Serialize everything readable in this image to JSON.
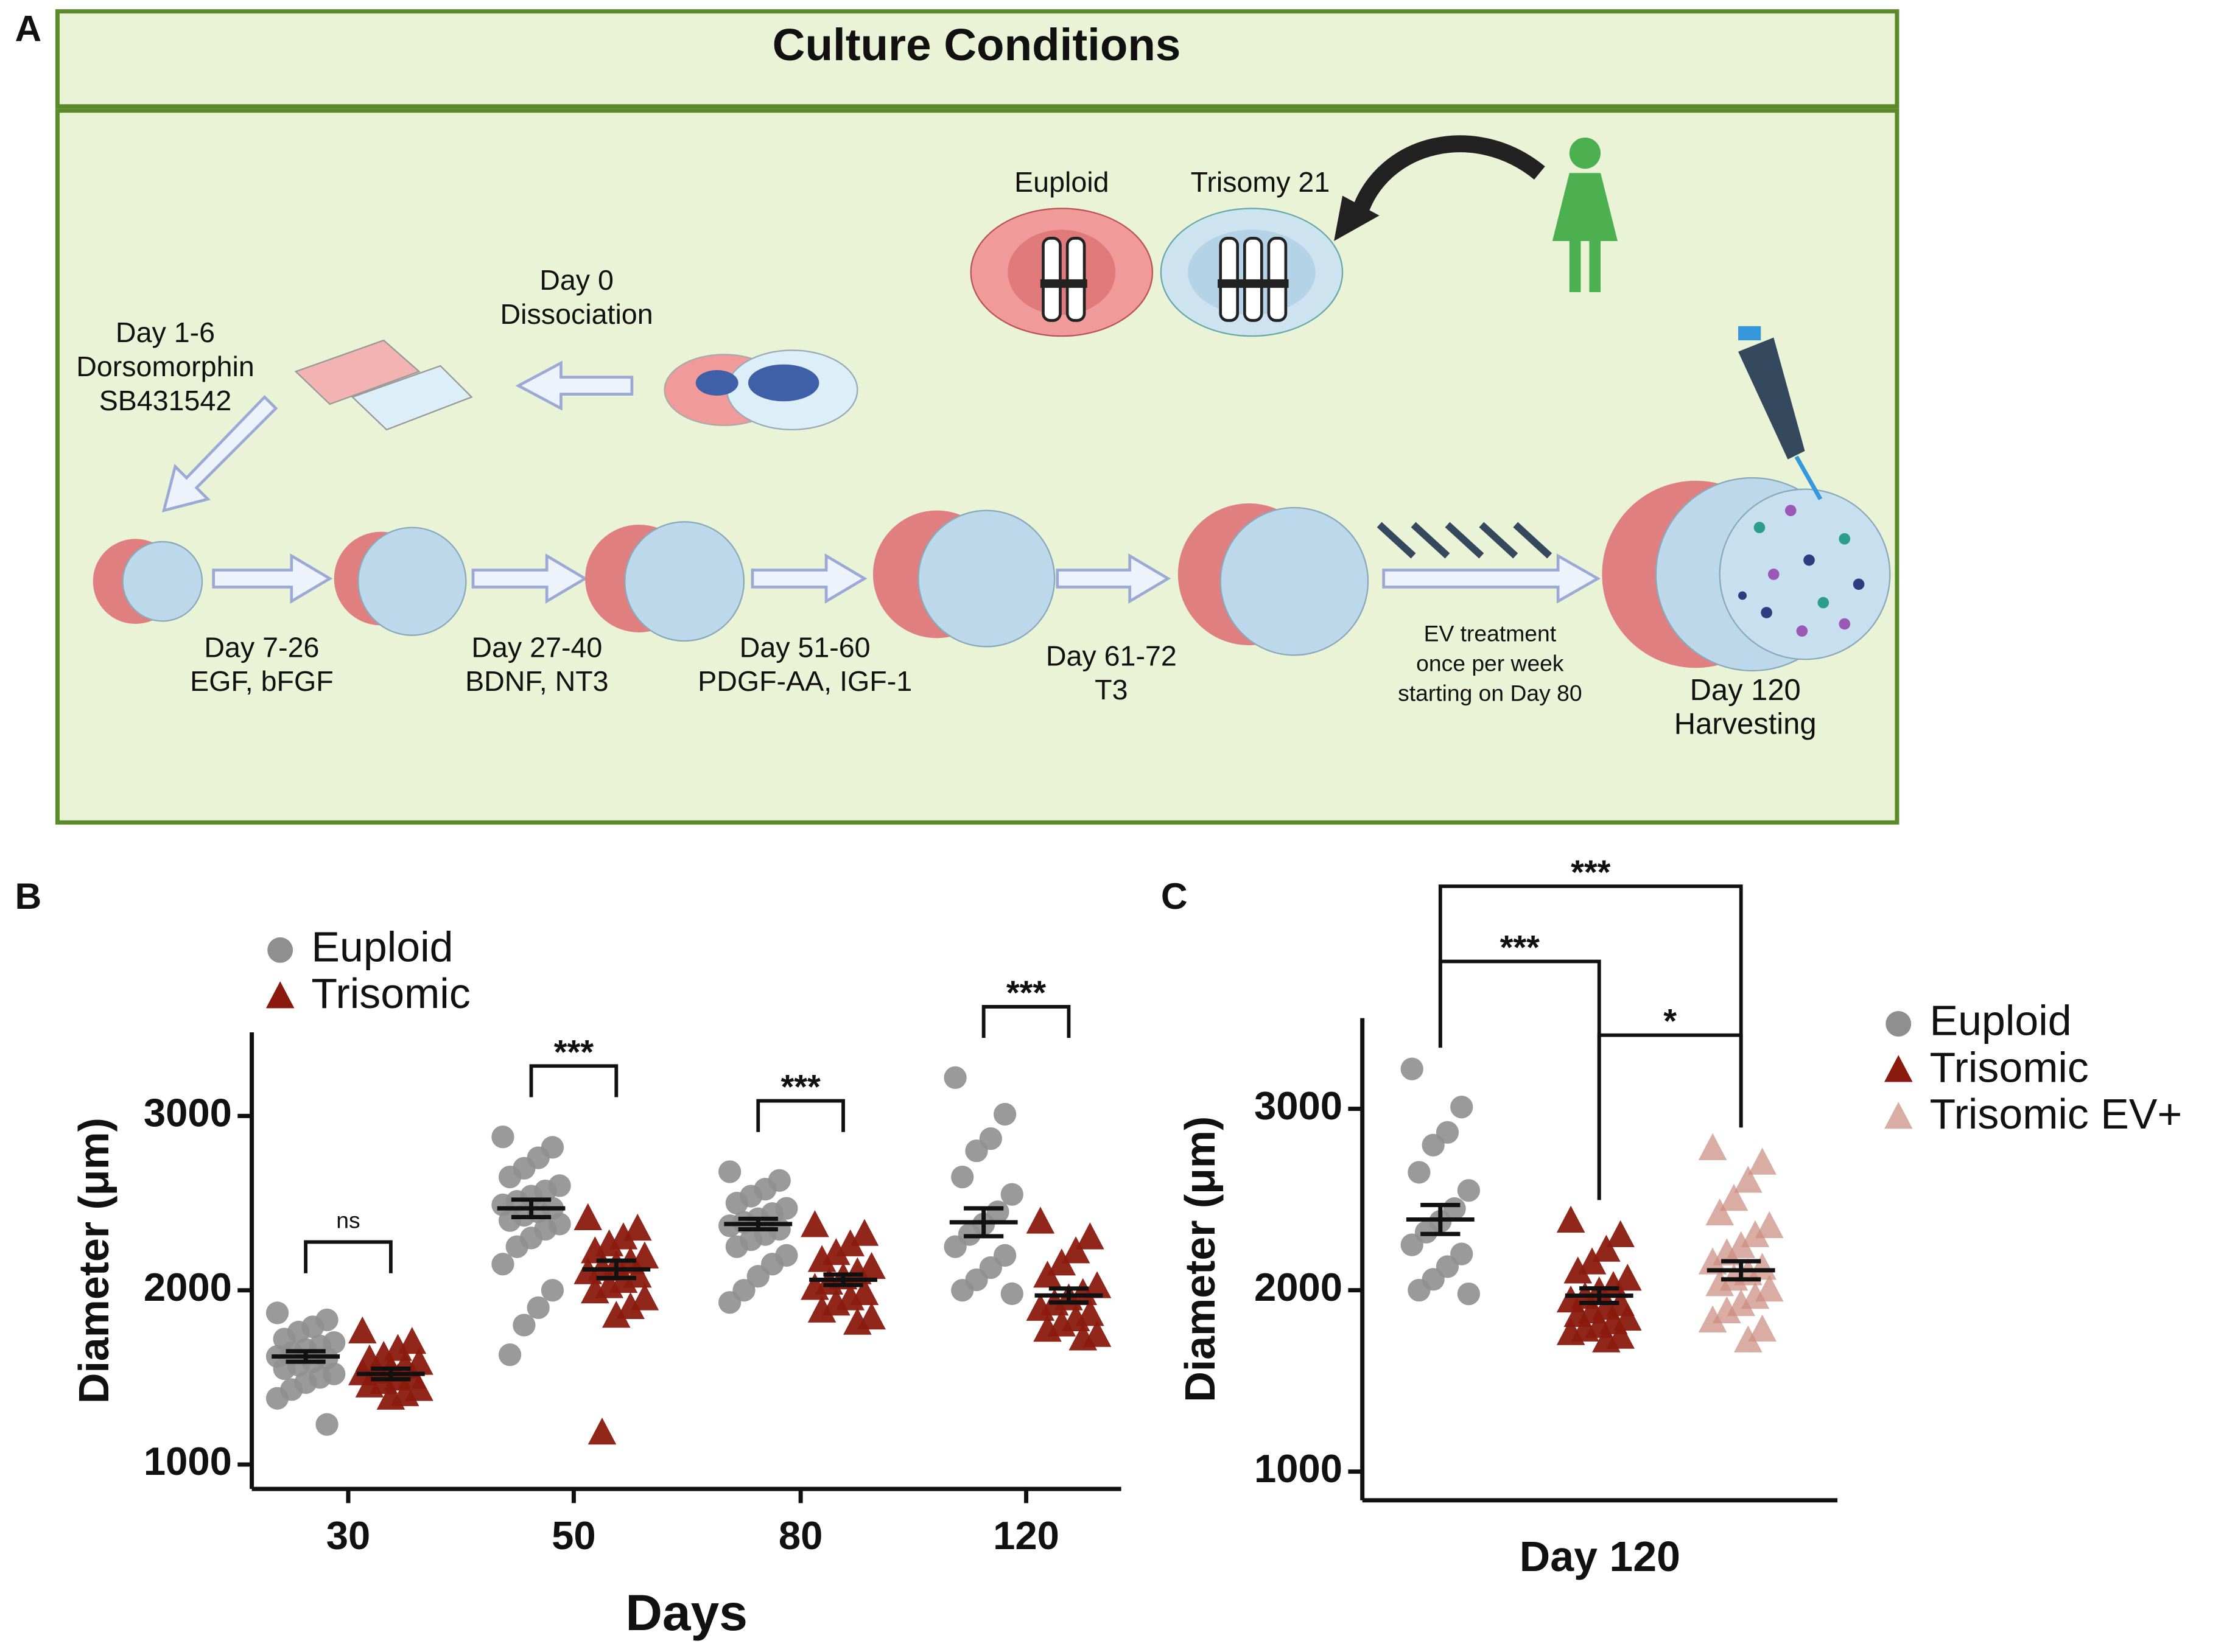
{
  "panel_labels": [
    "A",
    "B",
    "C"
  ],
  "diagram": {
    "title": "Culture Conditions",
    "karyotypes": [
      "Euploid",
      "Trisomy 21"
    ],
    "steps": [
      [
        "Day 0",
        "Dissociation"
      ],
      [
        "Day 1-6",
        "Dorsomorphin",
        "SB431542"
      ],
      [
        "Day 7-26",
        "EGF, bFGF"
      ],
      [
        "Day 27-40",
        "BDNF, NT3"
      ],
      [
        "Day 51-60",
        "PDGF-AA, IGF-1"
      ],
      [
        "Day 61-72",
        "T3"
      ],
      [
        "EV treatment",
        "once per week",
        "starting on Day 80"
      ],
      [
        "Day 120",
        "Harvesting"
      ]
    ]
  },
  "chart_data": [
    {
      "type": "dot_plot",
      "xlabel": "Days",
      "ylabel": "Diameter (μm)",
      "categories": [
        "30",
        "50",
        "80",
        "120"
      ],
      "ylim": [
        860,
        3480
      ],
      "yticks": [
        1000,
        2000,
        3000
      ],
      "legend": "top-left",
      "series": [
        {
          "name": "Euploid",
          "color": "#8f8f8f",
          "marker": "circle",
          "values": [
            [
              1870,
              1830,
              1790,
              1760,
              1720,
              1700,
              1680,
              1660,
              1640,
              1620,
              1610,
              1590,
              1570,
              1550,
              1520,
              1500,
              1470,
              1430,
              1380,
              1230
            ],
            [
              2880,
              2820,
              2760,
              2700,
              2650,
              2600,
              2570,
              2540,
              2510,
              2490,
              2470,
              2450,
              2430,
              2400,
              2380,
              2350,
              2300,
              2250,
              2150,
              2000,
              1900,
              1800,
              1630
            ],
            [
              2680,
              2630,
              2580,
              2540,
              2500,
              2470,
              2440,
              2410,
              2390,
              2370,
              2350,
              2320,
              2290,
              2250,
              2200,
              2150,
              2080,
              2000,
              1930
            ],
            [
              3220,
              3010,
              2870,
              2800,
              2650,
              2550,
              2450,
              2380,
              2320,
              2250,
              2200,
              2130,
              2060,
              2000,
              1980
            ]
          ],
          "mean": [
            1620,
            2470,
            2380,
            2390
          ],
          "sem": [
            30,
            50,
            30,
            80
          ]
        },
        {
          "name": "Trisomic",
          "color": "#8b1a0e",
          "marker": "triangle",
          "values": [
            [
              1760,
              1700,
              1660,
              1620,
              1600,
              1580,
              1560,
              1540,
              1530,
              1520,
              1500,
              1490,
              1470,
              1450,
              1430,
              1400,
              1380
            ],
            [
              2410,
              2350,
              2300,
              2260,
              2220,
              2190,
              2160,
              2140,
              2120,
              2100,
              2080,
              2050,
              2020,
              1990,
              1950,
              1900,
              1850,
              1180
            ],
            [
              2370,
              2320,
              2260,
              2210,
              2170,
              2130,
              2100,
              2070,
              2040,
              2010,
              1980,
              1950,
              1920,
              1880,
              1840,
              1810
            ],
            [
              2390,
              2300,
              2220,
              2150,
              2080,
              2020,
              1980,
              1950,
              1920,
              1890,
              1860,
              1830,
              1800,
              1770,
              1740,
              1720
            ]
          ],
          "mean": [
            1520,
            2120,
            2060,
            1970
          ],
          "sem": [
            30,
            50,
            30,
            40
          ]
        }
      ],
      "comparisons": [
        {
          "pair": [
            0,
            1
          ],
          "category": 0,
          "label": "ns"
        },
        {
          "pair": [
            0,
            1
          ],
          "category": 1,
          "label": "***"
        },
        {
          "pair": [
            0,
            1
          ],
          "category": 2,
          "label": "***"
        },
        {
          "pair": [
            0,
            1
          ],
          "category": 3,
          "label": "***"
        }
      ]
    },
    {
      "type": "dot_plot",
      "xlabel": "Day 120",
      "ylabel": "Diameter (μm)",
      "ylim": [
        842,
        3500
      ],
      "yticks": [
        1000,
        2000,
        3000
      ],
      "legend": "right",
      "series": [
        {
          "name": "Euploid",
          "color": "#8f8f8f",
          "marker": "circle",
          "values": [
            3220,
            3010,
            2870,
            2800,
            2650,
            2550,
            2450,
            2380,
            2320,
            2250,
            2200,
            2130,
            2060,
            2000,
            1980
          ],
          "mean": 2390,
          "sem": 80
        },
        {
          "name": "Trisomic",
          "color": "#8b1a0e",
          "marker": "triangle",
          "values": [
            2380,
            2300,
            2220,
            2150,
            2100,
            2060,
            2020,
            1990,
            1960,
            1940,
            1920,
            1900,
            1880,
            1860,
            1840,
            1820,
            1800,
            1780,
            1760,
            1740,
            1720
          ],
          "mean": 1970,
          "sem": 40
        },
        {
          "name": "Trisomic EV+",
          "color": "#c98a7c",
          "marker": "triangle",
          "values": [
            2780,
            2700,
            2600,
            2500,
            2420,
            2350,
            2300,
            2240,
            2200,
            2150,
            2120,
            2090,
            2060,
            2030,
            2000,
            1960,
            1920,
            1880,
            1830,
            1780,
            1720
          ],
          "mean": 2110,
          "sem": 50
        }
      ],
      "comparisons": [
        {
          "pair": [
            0,
            1
          ],
          "label": "***"
        },
        {
          "pair": [
            0,
            2
          ],
          "label": "***"
        },
        {
          "pair": [
            1,
            2
          ],
          "label": "*"
        }
      ]
    }
  ]
}
